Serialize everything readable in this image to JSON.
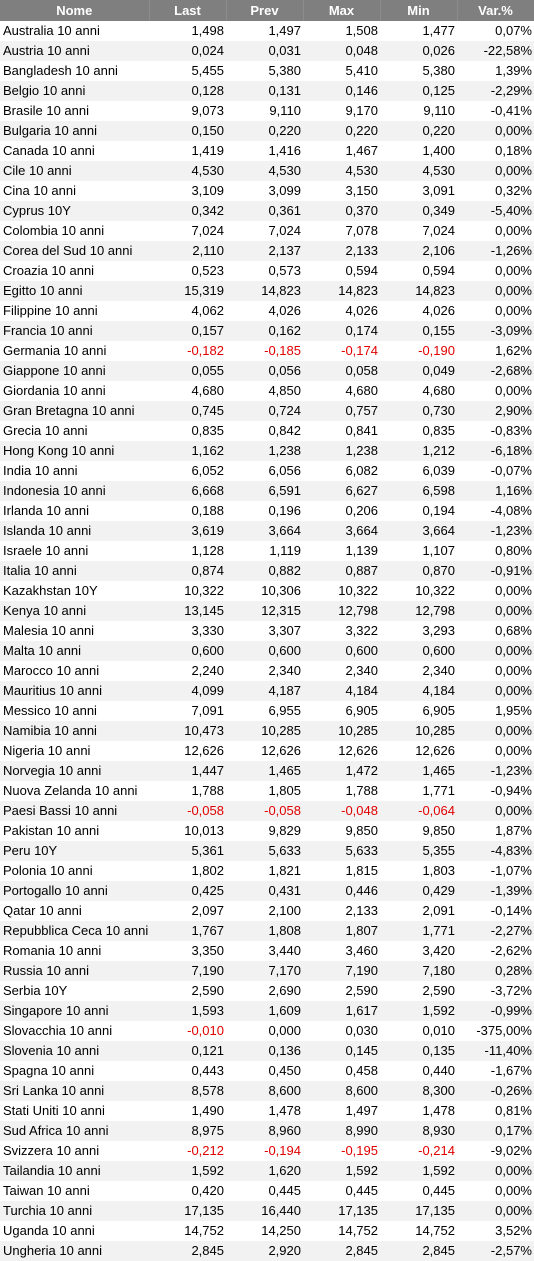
{
  "table": {
    "columns": [
      "Nome",
      "Last",
      "Prev",
      "Max",
      "Min",
      "Var.%"
    ],
    "negative_color": "#e00000",
    "header_bg": "#7f7f7f",
    "rows": [
      {
        "name": "Australia 10 anni",
        "last": "1,498",
        "prev": "1,497",
        "max": "1,508",
        "min": "1,477",
        "var": "0,07%"
      },
      {
        "name": "Austria 10 anni",
        "last": "0,024",
        "prev": "0,031",
        "max": "0,048",
        "min": "0,026",
        "var": "-22,58%"
      },
      {
        "name": "Bangladesh 10 anni",
        "last": "5,455",
        "prev": "5,380",
        "max": "5,410",
        "min": "5,380",
        "var": "1,39%"
      },
      {
        "name": "Belgio 10 anni",
        "last": "0,128",
        "prev": "0,131",
        "max": "0,146",
        "min": "0,125",
        "var": "-2,29%"
      },
      {
        "name": "Brasile 10 anni",
        "last": "9,073",
        "prev": "9,110",
        "max": "9,170",
        "min": "9,110",
        "var": "-0,41%"
      },
      {
        "name": "Bulgaria 10 anni",
        "last": "0,150",
        "prev": "0,220",
        "max": "0,220",
        "min": "0,220",
        "var": "0,00%"
      },
      {
        "name": "Canada 10 anni",
        "last": "1,419",
        "prev": "1,416",
        "max": "1,467",
        "min": "1,400",
        "var": "0,18%"
      },
      {
        "name": "Cile 10 anni",
        "last": "4,530",
        "prev": "4,530",
        "max": "4,530",
        "min": "4,530",
        "var": "0,00%"
      },
      {
        "name": "Cina 10 anni",
        "last": "3,109",
        "prev": "3,099",
        "max": "3,150",
        "min": "3,091",
        "var": "0,32%"
      },
      {
        "name": "Cyprus 10Y",
        "last": "0,342",
        "prev": "0,361",
        "max": "0,370",
        "min": "0,349",
        "var": "-5,40%"
      },
      {
        "name": "Colombia 10 anni",
        "last": "7,024",
        "prev": "7,024",
        "max": "7,078",
        "min": "7,024",
        "var": "0,00%"
      },
      {
        "name": "Corea del Sud 10 anni",
        "last": "2,110",
        "prev": "2,137",
        "max": "2,133",
        "min": "2,106",
        "var": "-1,26%"
      },
      {
        "name": "Croazia 10 anni",
        "last": "0,523",
        "prev": "0,573",
        "max": "0,594",
        "min": "0,594",
        "var": "0,00%"
      },
      {
        "name": "Egitto 10 anni",
        "last": "15,319",
        "prev": "14,823",
        "max": "14,823",
        "min": "14,823",
        "var": "0,00%"
      },
      {
        "name": "Filippine 10 anni",
        "last": "4,062",
        "prev": "4,026",
        "max": "4,026",
        "min": "4,026",
        "var": "0,00%"
      },
      {
        "name": "Francia 10 anni",
        "last": "0,157",
        "prev": "0,162",
        "max": "0,174",
        "min": "0,155",
        "var": "-3,09%"
      },
      {
        "name": "Germania 10 anni",
        "last": "-0,182",
        "prev": "-0,185",
        "max": "-0,174",
        "min": "-0,190",
        "var": "1,62%"
      },
      {
        "name": "Giappone 10 anni",
        "last": "0,055",
        "prev": "0,056",
        "max": "0,058",
        "min": "0,049",
        "var": "-2,68%"
      },
      {
        "name": "Giordania 10 anni",
        "last": "4,680",
        "prev": "4,850",
        "max": "4,680",
        "min": "4,680",
        "var": "0,00%"
      },
      {
        "name": "Gran Bretagna 10 anni",
        "last": "0,745",
        "prev": "0,724",
        "max": "0,757",
        "min": "0,730",
        "var": "2,90%"
      },
      {
        "name": "Grecia 10 anni",
        "last": "0,835",
        "prev": "0,842",
        "max": "0,841",
        "min": "0,835",
        "var": "-0,83%"
      },
      {
        "name": "Hong Kong 10 anni",
        "last": "1,162",
        "prev": "1,238",
        "max": "1,238",
        "min": "1,212",
        "var": "-6,18%"
      },
      {
        "name": "India 10 anni",
        "last": "6,052",
        "prev": "6,056",
        "max": "6,082",
        "min": "6,039",
        "var": "-0,07%"
      },
      {
        "name": "Indonesia 10 anni",
        "last": "6,668",
        "prev": "6,591",
        "max": "6,627",
        "min": "6,598",
        "var": "1,16%"
      },
      {
        "name": "Irlanda 10 anni",
        "last": "0,188",
        "prev": "0,196",
        "max": "0,206",
        "min": "0,194",
        "var": "-4,08%"
      },
      {
        "name": "Islanda 10 anni",
        "last": "3,619",
        "prev": "3,664",
        "max": "3,664",
        "min": "3,664",
        "var": "-1,23%"
      },
      {
        "name": "Israele 10 anni",
        "last": "1,128",
        "prev": "1,119",
        "max": "1,139",
        "min": "1,107",
        "var": "0,80%"
      },
      {
        "name": "Italia 10 anni",
        "last": "0,874",
        "prev": "0,882",
        "max": "0,887",
        "min": "0,870",
        "var": "-0,91%"
      },
      {
        "name": "Kazakhstan 10Y",
        "last": "10,322",
        "prev": "10,306",
        "max": "10,322",
        "min": "10,322",
        "var": "0,00%"
      },
      {
        "name": "Kenya 10 anni",
        "last": "13,145",
        "prev": "12,315",
        "max": "12,798",
        "min": "12,798",
        "var": "0,00%"
      },
      {
        "name": "Malesia 10 anni",
        "last": "3,330",
        "prev": "3,307",
        "max": "3,322",
        "min": "3,293",
        "var": "0,68%"
      },
      {
        "name": "Malta 10 anni",
        "last": "0,600",
        "prev": "0,600",
        "max": "0,600",
        "min": "0,600",
        "var": "0,00%"
      },
      {
        "name": "Marocco 10 anni",
        "last": "2,240",
        "prev": "2,340",
        "max": "2,340",
        "min": "2,340",
        "var": "0,00%"
      },
      {
        "name": "Mauritius 10 anni",
        "last": "4,099",
        "prev": "4,187",
        "max": "4,184",
        "min": "4,184",
        "var": "0,00%"
      },
      {
        "name": "Messico 10 anni",
        "last": "7,091",
        "prev": "6,955",
        "max": "6,905",
        "min": "6,905",
        "var": "1,95%"
      },
      {
        "name": "Namibia 10 anni",
        "last": "10,473",
        "prev": "10,285",
        "max": "10,285",
        "min": "10,285",
        "var": "0,00%"
      },
      {
        "name": "Nigeria 10 anni",
        "last": "12,626",
        "prev": "12,626",
        "max": "12,626",
        "min": "12,626",
        "var": "0,00%"
      },
      {
        "name": "Norvegia 10 anni",
        "last": "1,447",
        "prev": "1,465",
        "max": "1,472",
        "min": "1,465",
        "var": "-1,23%"
      },
      {
        "name": "Nuova Zelanda 10 anni",
        "last": "1,788",
        "prev": "1,805",
        "max": "1,788",
        "min": "1,771",
        "var": "-0,94%"
      },
      {
        "name": "Paesi Bassi 10 anni",
        "last": "-0,058",
        "prev": "-0,058",
        "max": "-0,048",
        "min": "-0,064",
        "var": "0,00%"
      },
      {
        "name": "Pakistan 10 anni",
        "last": "10,013",
        "prev": "9,829",
        "max": "9,850",
        "min": "9,850",
        "var": "1,87%"
      },
      {
        "name": "Peru 10Y",
        "last": "5,361",
        "prev": "5,633",
        "max": "5,633",
        "min": "5,355",
        "var": "-4,83%"
      },
      {
        "name": "Polonia 10 anni",
        "last": "1,802",
        "prev": "1,821",
        "max": "1,815",
        "min": "1,803",
        "var": "-1,07%"
      },
      {
        "name": "Portogallo 10 anni",
        "last": "0,425",
        "prev": "0,431",
        "max": "0,446",
        "min": "0,429",
        "var": "-1,39%"
      },
      {
        "name": "Qatar 10 anni",
        "last": "2,097",
        "prev": "2,100",
        "max": "2,133",
        "min": "2,091",
        "var": "-0,14%"
      },
      {
        "name": "Repubblica Ceca 10 anni",
        "last": "1,767",
        "prev": "1,808",
        "max": "1,807",
        "min": "1,771",
        "var": "-2,27%"
      },
      {
        "name": "Romania 10 anni",
        "last": "3,350",
        "prev": "3,440",
        "max": "3,460",
        "min": "3,420",
        "var": "-2,62%"
      },
      {
        "name": "Russia 10 anni",
        "last": "7,190",
        "prev": "7,170",
        "max": "7,190",
        "min": "7,180",
        "var": "0,28%"
      },
      {
        "name": "Serbia 10Y",
        "last": "2,590",
        "prev": "2,690",
        "max": "2,590",
        "min": "2,590",
        "var": "-3,72%"
      },
      {
        "name": "Singapore 10 anni",
        "last": "1,593",
        "prev": "1,609",
        "max": "1,617",
        "min": "1,592",
        "var": "-0,99%"
      },
      {
        "name": "Slovacchia 10 anni",
        "last": "-0,010",
        "prev": "0,000",
        "max": "0,030",
        "min": "0,010",
        "var": "-375,00%"
      },
      {
        "name": "Slovenia 10 anni",
        "last": "0,121",
        "prev": "0,136",
        "max": "0,145",
        "min": "0,135",
        "var": "-11,40%"
      },
      {
        "name": "Spagna 10 anni",
        "last": "0,443",
        "prev": "0,450",
        "max": "0,458",
        "min": "0,440",
        "var": "-1,67%"
      },
      {
        "name": "Sri Lanka 10 anni",
        "last": "8,578",
        "prev": "8,600",
        "max": "8,600",
        "min": "8,300",
        "var": "-0,26%"
      },
      {
        "name": "Stati Uniti 10 anni",
        "last": "1,490",
        "prev": "1,478",
        "max": "1,497",
        "min": "1,478",
        "var": "0,81%"
      },
      {
        "name": "Sud Africa 10 anni",
        "last": "8,975",
        "prev": "8,960",
        "max": "8,990",
        "min": "8,930",
        "var": "0,17%"
      },
      {
        "name": "Svizzera 10 anni",
        "last": "-0,212",
        "prev": "-0,194",
        "max": "-0,195",
        "min": "-0,214",
        "var": "-9,02%"
      },
      {
        "name": "Tailandia 10 anni",
        "last": "1,592",
        "prev": "1,620",
        "max": "1,592",
        "min": "1,592",
        "var": "0,00%"
      },
      {
        "name": "Taiwan 10 anni",
        "last": "0,420",
        "prev": "0,445",
        "max": "0,445",
        "min": "0,445",
        "var": "0,00%"
      },
      {
        "name": "Turchia 10 anni",
        "last": "17,135",
        "prev": "16,440",
        "max": "17,135",
        "min": "17,135",
        "var": "0,00%"
      },
      {
        "name": "Uganda 10 anni",
        "last": "14,752",
        "prev": "14,250",
        "max": "14,752",
        "min": "14,752",
        "var": "3,52%"
      },
      {
        "name": "Ungheria 10 anni",
        "last": "2,845",
        "prev": "2,920",
        "max": "2,845",
        "min": "2,845",
        "var": "-2,57%"
      }
    ]
  }
}
